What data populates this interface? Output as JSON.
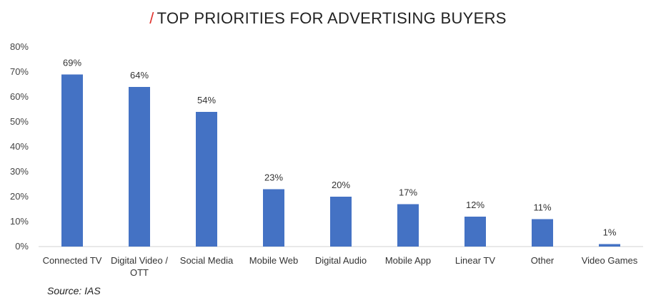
{
  "chart_data": {
    "type": "bar",
    "title_slash": "/",
    "title": "TOP PRIORITIES FOR ADVERTISING BUYERS",
    "source": "Source: IAS",
    "categories": [
      "Connected TV",
      "Digital Video / OTT",
      "Social Media",
      "Mobile Web",
      "Digital Audio",
      "Mobile App",
      "Linear TV",
      "Other",
      "Video Games"
    ],
    "category_lines": [
      [
        "Connected TV"
      ],
      [
        "Digital Video /",
        "OTT"
      ],
      [
        "Social Media"
      ],
      [
        "Mobile Web"
      ],
      [
        "Digital Audio"
      ],
      [
        "Mobile App"
      ],
      [
        "Linear TV"
      ],
      [
        "Other"
      ],
      [
        "Video Games"
      ]
    ],
    "values": [
      69,
      64,
      54,
      23,
      20,
      17,
      12,
      11,
      1
    ],
    "data_labels": [
      "69%",
      "64%",
      "54%",
      "23%",
      "20%",
      "17%",
      "12%",
      "11%",
      "1%"
    ],
    "ylim": [
      0,
      80
    ],
    "yticks": [
      0,
      10,
      20,
      30,
      40,
      50,
      60,
      70,
      80
    ],
    "ytick_labels": [
      "0%",
      "10%",
      "20%",
      "30%",
      "40%",
      "50%",
      "60%",
      "70%",
      "80%"
    ],
    "grid": false,
    "bar_color": "#4472c4",
    "axis_color": "#d0d0d0",
    "title_accent_color": "#e0332e"
  }
}
